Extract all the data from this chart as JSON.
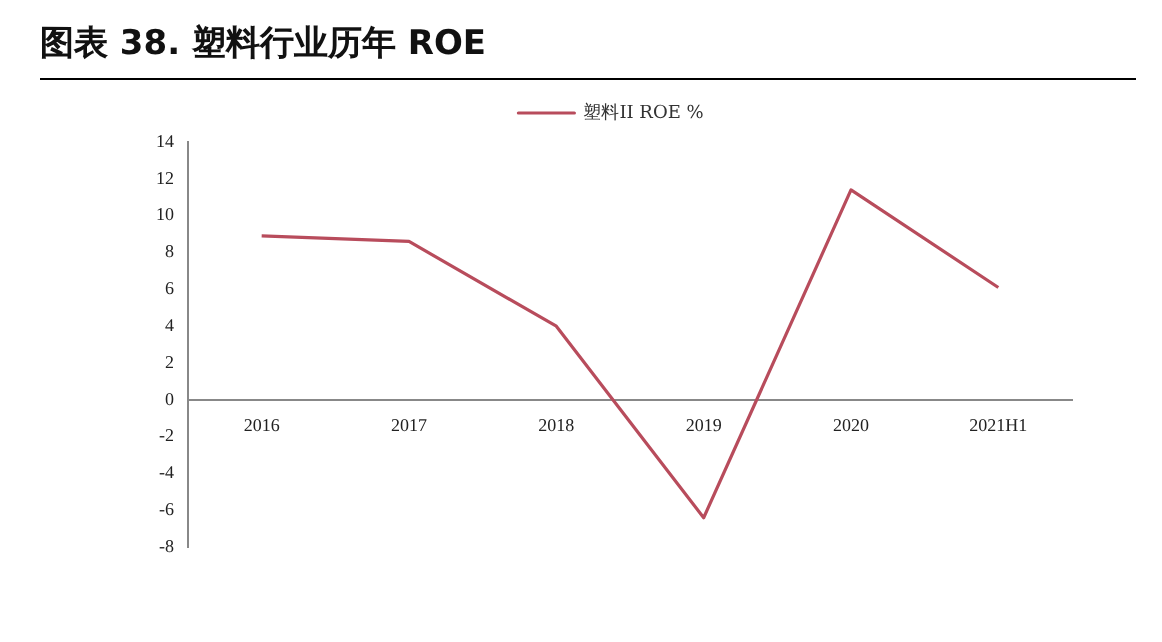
{
  "chart_data": {
    "type": "line",
    "title": "图表 38. 塑料行业历年 ROE",
    "categories": [
      "2016",
      "2017",
      "2018",
      "2019",
      "2020",
      "2021H1"
    ],
    "series": [
      {
        "name": "塑料II ROE %",
        "color": "#b84c5c",
        "values": [
          8.9,
          8.6,
          4.0,
          -6.4,
          11.4,
          6.1
        ]
      }
    ],
    "ylim": [
      -8,
      14
    ],
    "yticks": [
      -8,
      -6,
      -4,
      -2,
      0,
      2,
      4,
      6,
      8,
      10,
      12,
      14
    ],
    "grid": false,
    "legend": "top",
    "marker": "none",
    "line_style": "solid"
  }
}
